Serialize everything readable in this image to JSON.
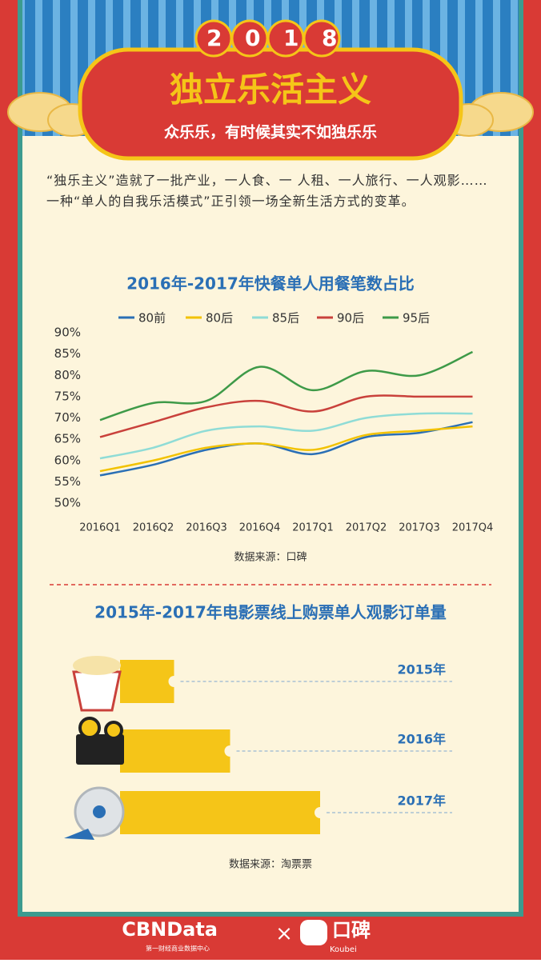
{
  "header": {
    "year": "2018",
    "title": "独立乐活主义",
    "subtitle": "众乐乐，有时候其实不如独乐乐"
  },
  "intro": "“独乐主义”造就了一批产业，一人食、一 人租、一人旅行、一人观影……一种“单人的自我乐活模式”正引领一场全新生活方式的变革。",
  "chart_data": [
    {
      "type": "line",
      "title": "2016年-2017年快餐单人用餐笔数占比",
      "categories": [
        "2016Q1",
        "2016Q2",
        "2016Q3",
        "2016Q4",
        "2017Q1",
        "2017Q2",
        "2017Q3",
        "2017Q4"
      ],
      "series": [
        {
          "name": "80前",
          "color": "#2a6fb5",
          "values": [
            56.5,
            59,
            62.5,
            64,
            61.5,
            65.5,
            66.5,
            69
          ]
        },
        {
          "name": "80后",
          "color": "#f2c200",
          "values": [
            57.5,
            60,
            63,
            64,
            62.5,
            66,
            67,
            68
          ]
        },
        {
          "name": "85后",
          "color": "#8fdcd6",
          "values": [
            60.5,
            63,
            67,
            68,
            67,
            70,
            71,
            71
          ]
        },
        {
          "name": "90后",
          "color": "#c9413b",
          "values": [
            65.5,
            69,
            72.5,
            74,
            71.5,
            75,
            75,
            75
          ]
        },
        {
          "name": "95后",
          "color": "#3e9a48",
          "values": [
            69.5,
            73.5,
            74,
            82,
            76.5,
            81,
            80,
            85.5
          ]
        }
      ],
      "ylim": [
        50,
        90
      ],
      "yticks": [
        {
          "value": 50,
          "label": "50%"
        },
        {
          "value": 55,
          "label": "55%"
        },
        {
          "value": 60,
          "label": "60%"
        },
        {
          "value": 65,
          "label": "65%"
        },
        {
          "value": 70,
          "label": "70%"
        },
        {
          "value": 75,
          "label": "75%"
        },
        {
          "value": 80,
          "label": "80%"
        },
        {
          "value": 85,
          "label": "85%"
        },
        {
          "value": 90,
          "label": "90%"
        }
      ],
      "source": "数据来源：口碑"
    },
    {
      "type": "bar",
      "title": "2015年-2017年电影票线上购票单人观影订单量",
      "categories": [
        "2015年",
        "2016年",
        "2017年"
      ],
      "values": [
        27,
        55,
        100
      ],
      "color": "#f5c518",
      "source": "数据来源：淘票票"
    }
  ],
  "footer": {
    "brand": "CBNData",
    "brand_sub": "第一财经商业数据中心",
    "separator": "×",
    "partner": "口碑",
    "partner_sub": "Koubei"
  }
}
